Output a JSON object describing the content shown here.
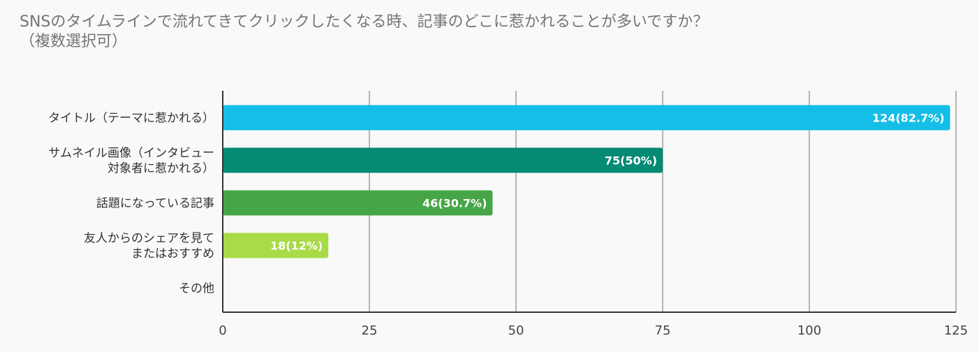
{
  "chart_data": {
    "type": "bar",
    "orientation": "horizontal",
    "title": "SNSのタイムラインで流れてきてクリックしたくなる時、記事のどこに惹かれることが多いですか？\n（複数選択可）",
    "categories": [
      "タイトル（テーマに惹かれる）",
      "サムネイル画像（インタビュー対象者に惹かれる）",
      "話題になっている記事",
      "友人からのシェアを見てまたはおすすめ",
      "その他"
    ],
    "category_lines": [
      [
        "タイトル（テーマに惹かれる）"
      ],
      [
        "サムネイル画像（インタビュー",
        "対象者に惹かれる）"
      ],
      [
        "話題になっている記事"
      ],
      [
        "友人からのシェアを見て",
        "またはおすすめ"
      ],
      [
        "その他"
      ]
    ],
    "values": [
      124,
      75,
      46,
      18,
      0
    ],
    "data_labels": [
      "124(82.7%)",
      "75(50%)",
      "46(30.7%)",
      "18(12%)",
      ""
    ],
    "colors": [
      "#14bee6",
      "#058a76",
      "#46a547",
      "#a9da47",
      "#cccccc"
    ],
    "xlim": [
      0,
      125
    ],
    "x_ticks": [
      0,
      25,
      50,
      75,
      100,
      125
    ],
    "xlabel": "",
    "ylabel": "",
    "grid": true,
    "legend": "none"
  }
}
